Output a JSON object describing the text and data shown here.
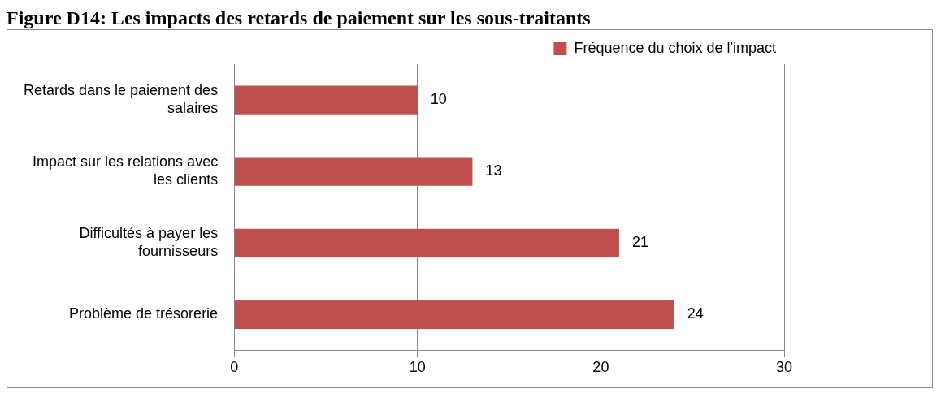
{
  "chart_data": {
    "type": "bar",
    "title": "Figure D14: Les impacts des retards de paiement sur les sous-traitants",
    "orientation": "horizontal",
    "categories": [
      "Retards dans le paiement des salaires",
      "Impact sur les relations avec les clients",
      "Difficultés à payer les fournisseurs",
      "Problème de trésorerie"
    ],
    "series": [
      {
        "name": "Fréquence du choix de l'impact",
        "color": "#c0504d",
        "values": [
          10,
          13,
          21,
          24
        ]
      }
    ],
    "xlim": [
      0,
      30
    ],
    "xticks": [
      0,
      10,
      20,
      30
    ],
    "grid": "x",
    "legend": "top right",
    "data_labels": true
  }
}
